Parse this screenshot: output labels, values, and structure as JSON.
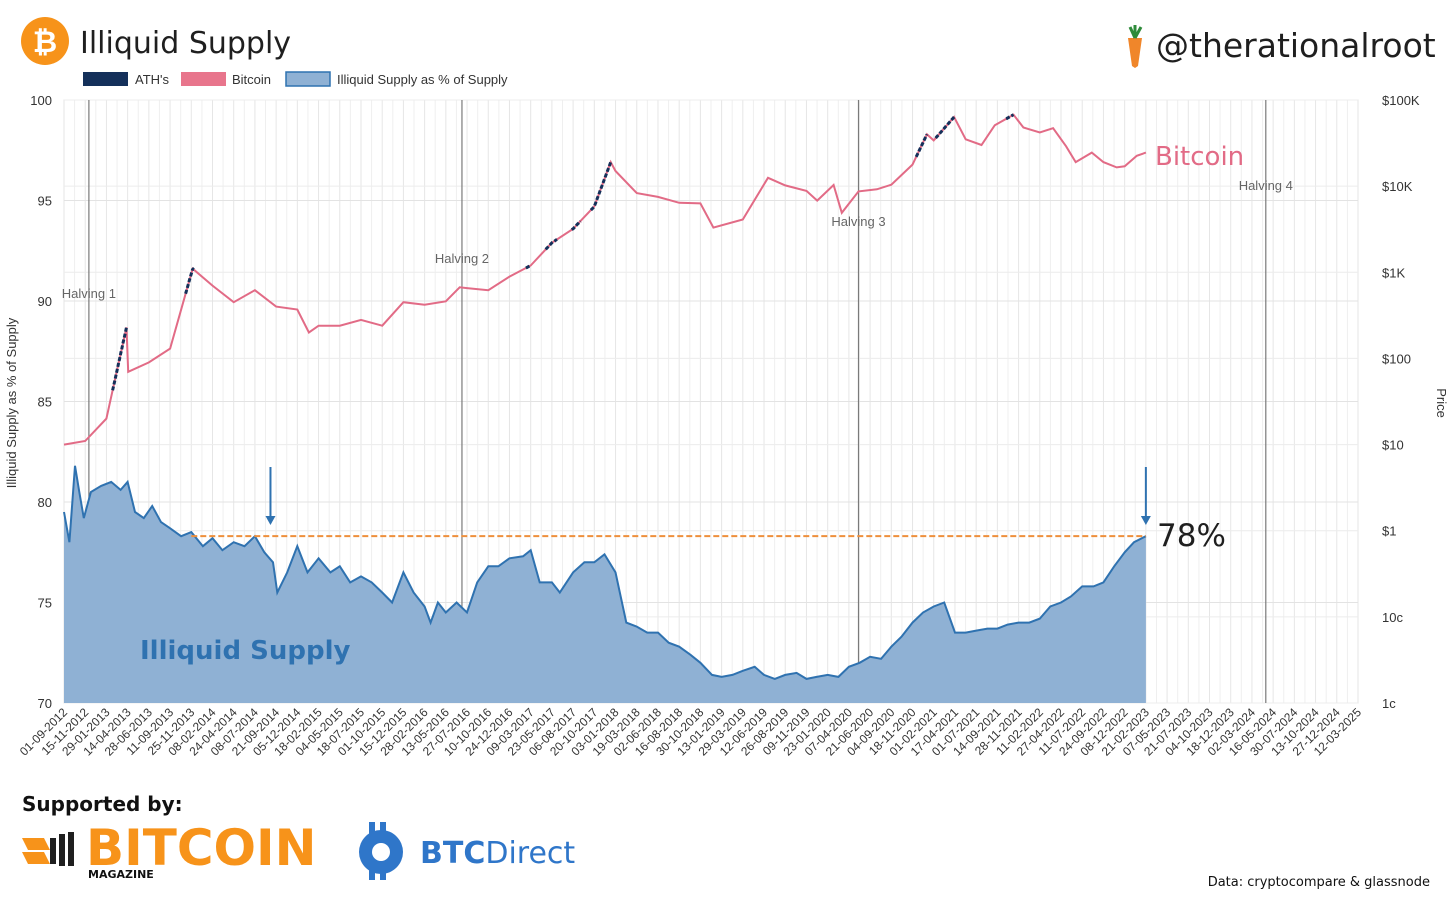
{
  "header": {
    "title": "Illiquid Supply",
    "handle": "@therationalroot",
    "bitcoin_glyph": "₿"
  },
  "legend": [
    {
      "label": "ATH's",
      "color": "#14305a"
    },
    {
      "label": "Bitcoin",
      "color": "#e8758c"
    },
    {
      "label": "Illiquid Supply as % of Supply",
      "color": "#8fb1d4"
    }
  ],
  "labels": {
    "bitcoin": "Bitcoin",
    "illiquid": "Illiquid Supply",
    "current_pct": "78%"
  },
  "footer": {
    "supported_by": "Supported by:",
    "bitcoin_magazine": "BITCOIN",
    "bitcoin_magazine_sub": "MAGAZINE",
    "btc_direct_a": "BTC",
    "btc_direct_b": "Direct",
    "source": "Data: cryptocompare & glassnode"
  },
  "colors": {
    "bitcoin_line": "#e26b86",
    "ath": "#14305a",
    "illiquid_fill": "#8fb1d4",
    "illiquid_line": "#2f72b0",
    "reference": "#ee8f3b",
    "orange": "#f7931a"
  },
  "chart_data": {
    "type": "area",
    "ylabel": "Illiquid Supply as % of Supply",
    "y2label": "Price",
    "ylim": [
      70,
      100
    ],
    "yticks": [
      "100",
      "95",
      "90",
      "85",
      "80",
      "75",
      "70"
    ],
    "y2ticks": [
      "$100K",
      "$10K",
      "$1K",
      "$100",
      "$10",
      "$1",
      "10c",
      "1c"
    ],
    "y2_log_range": [
      0.01,
      100000
    ],
    "x_tick_labels": [
      "01-09-2012",
      "15-11-2012",
      "29-01-2013",
      "14-04-2013",
      "28-06-2013",
      "11-09-2013",
      "25-11-2013",
      "08-02-2014",
      "24-04-2014",
      "08-07-2014",
      "21-09-2014",
      "05-12-2014",
      "18-02-2015",
      "04-05-2015",
      "18-07-2015",
      "01-10-2015",
      "15-12-2015",
      "28-02-2016",
      "13-05-2016",
      "27-07-2016",
      "10-10-2016",
      "24-12-2016",
      "09-03-2017",
      "23-05-2017",
      "06-08-2017",
      "20-10-2017",
      "03-01-2018",
      "19-03-2018",
      "02-06-2018",
      "16-08-2018",
      "30-10-2018",
      "13-01-2019",
      "29-03-2019",
      "12-06-2019",
      "26-08-2019",
      "09-11-2019",
      "23-01-2020",
      "07-04-2020",
      "21-06-2020",
      "04-09-2020",
      "18-11-2020",
      "01-02-2021",
      "17-04-2021",
      "01-07-2021",
      "14-09-2021",
      "28-11-2021",
      "11-02-2022",
      "27-04-2022",
      "11-07-2022",
      "24-09-2022",
      "08-12-2022",
      "21-02-2023",
      "07-05-2023",
      "21-07-2023",
      "04-10-2023",
      "18-12-2023",
      "02-03-2024",
      "16-05-2024",
      "30-07-2024",
      "13-10-2024",
      "27-12-2024",
      "12-03-2025"
    ],
    "halvings": [
      {
        "label": "Halving 1",
        "date": "2012-11-28"
      },
      {
        "label": "Halving 2",
        "date": "2016-07-09"
      },
      {
        "label": "Halving 3",
        "date": "2020-05-11"
      },
      {
        "label": "Halving 4",
        "date": "2024-04-20"
      }
    ],
    "reference_line": {
      "value": 78.3,
      "label": "78%"
    },
    "series": [
      {
        "name": "Illiquid Supply as % of Supply",
        "axis": "left",
        "points": [
          [
            "2012-09-01",
            79.5
          ],
          [
            "2012-09-20",
            78.0
          ],
          [
            "2012-10-10",
            81.8
          ],
          [
            "2012-10-25",
            80.5
          ],
          [
            "2012-11-10",
            79.2
          ],
          [
            "2012-12-05",
            80.5
          ],
          [
            "2013-01-10",
            80.8
          ],
          [
            "2013-02-15",
            81.0
          ],
          [
            "2013-03-20",
            80.6
          ],
          [
            "2013-04-14",
            81.0
          ],
          [
            "2013-05-10",
            79.5
          ],
          [
            "2013-06-10",
            79.2
          ],
          [
            "2013-07-10",
            79.8
          ],
          [
            "2013-08-10",
            79.0
          ],
          [
            "2013-09-10",
            78.7
          ],
          [
            "2013-10-20",
            78.3
          ],
          [
            "2013-11-25",
            78.5
          ],
          [
            "2014-01-05",
            77.8
          ],
          [
            "2014-02-08",
            78.2
          ],
          [
            "2014-03-15",
            77.6
          ],
          [
            "2014-04-24",
            78.0
          ],
          [
            "2014-06-01",
            77.8
          ],
          [
            "2014-07-08",
            78.3
          ],
          [
            "2014-08-10",
            77.5
          ],
          [
            "2014-09-10",
            77.0
          ],
          [
            "2014-09-25",
            75.5
          ],
          [
            "2014-10-30",
            76.5
          ],
          [
            "2014-12-05",
            77.8
          ],
          [
            "2015-01-10",
            76.5
          ],
          [
            "2015-02-18",
            77.2
          ],
          [
            "2015-04-01",
            76.5
          ],
          [
            "2015-05-04",
            76.8
          ],
          [
            "2015-06-10",
            76.0
          ],
          [
            "2015-07-18",
            76.3
          ],
          [
            "2015-08-25",
            76.0
          ],
          [
            "2015-10-01",
            75.5
          ],
          [
            "2015-11-05",
            75.0
          ],
          [
            "2015-12-15",
            76.5
          ],
          [
            "2016-01-20",
            75.5
          ],
          [
            "2016-02-28",
            74.8
          ],
          [
            "2016-03-20",
            74.0
          ],
          [
            "2016-04-15",
            75.0
          ],
          [
            "2016-05-13",
            74.5
          ],
          [
            "2016-06-20",
            75.0
          ],
          [
            "2016-07-27",
            74.5
          ],
          [
            "2016-09-01",
            76.0
          ],
          [
            "2016-10-10",
            76.8
          ],
          [
            "2016-11-15",
            76.8
          ],
          [
            "2016-12-24",
            77.2
          ],
          [
            "2017-02-10",
            77.3
          ],
          [
            "2017-03-09",
            77.6
          ],
          [
            "2017-04-10",
            76.0
          ],
          [
            "2017-05-23",
            76.0
          ],
          [
            "2017-06-20",
            75.5
          ],
          [
            "2017-08-06",
            76.5
          ],
          [
            "2017-09-15",
            77.0
          ],
          [
            "2017-10-20",
            77.0
          ],
          [
            "2017-11-25",
            77.4
          ],
          [
            "2018-01-03",
            76.5
          ],
          [
            "2018-02-10",
            74.0
          ],
          [
            "2018-03-19",
            73.8
          ],
          [
            "2018-04-25",
            73.5
          ],
          [
            "2018-06-02",
            73.5
          ],
          [
            "2018-07-10",
            73.0
          ],
          [
            "2018-08-16",
            72.8
          ],
          [
            "2018-09-25",
            72.4
          ],
          [
            "2018-10-30",
            72.0
          ],
          [
            "2018-12-10",
            71.4
          ],
          [
            "2019-01-13",
            71.3
          ],
          [
            "2019-02-20",
            71.4
          ],
          [
            "2019-03-29",
            71.6
          ],
          [
            "2019-05-10",
            71.8
          ],
          [
            "2019-06-12",
            71.4
          ],
          [
            "2019-07-20",
            71.2
          ],
          [
            "2019-08-26",
            71.4
          ],
          [
            "2019-10-05",
            71.5
          ],
          [
            "2019-11-09",
            71.2
          ],
          [
            "2019-12-15",
            71.3
          ],
          [
            "2020-01-23",
            71.4
          ],
          [
            "2020-03-01",
            71.3
          ],
          [
            "2020-04-07",
            71.8
          ],
          [
            "2020-05-15",
            72.0
          ],
          [
            "2020-06-21",
            72.3
          ],
          [
            "2020-07-30",
            72.2
          ],
          [
            "2020-09-04",
            72.8
          ],
          [
            "2020-10-10",
            73.3
          ],
          [
            "2020-11-18",
            74.0
          ],
          [
            "2020-12-25",
            74.5
          ],
          [
            "2021-02-01",
            74.8
          ],
          [
            "2021-03-10",
            75.0
          ],
          [
            "2021-04-17",
            73.5
          ],
          [
            "2021-05-25",
            73.5
          ],
          [
            "2021-07-01",
            73.6
          ],
          [
            "2021-08-10",
            73.7
          ],
          [
            "2021-09-14",
            73.7
          ],
          [
            "2021-10-20",
            73.9
          ],
          [
            "2021-11-28",
            74.0
          ],
          [
            "2022-01-05",
            74.0
          ],
          [
            "2022-02-11",
            74.2
          ],
          [
            "2022-03-20",
            74.8
          ],
          [
            "2022-04-27",
            75.0
          ],
          [
            "2022-06-01",
            75.3
          ],
          [
            "2022-07-11",
            75.8
          ],
          [
            "2022-08-20",
            75.8
          ],
          [
            "2022-09-24",
            76.0
          ],
          [
            "2022-11-01",
            76.8
          ],
          [
            "2022-12-08",
            77.5
          ],
          [
            "2023-01-10",
            78.0
          ],
          [
            "2023-02-21",
            78.3
          ]
        ]
      },
      {
        "name": "Bitcoin",
        "axis": "right",
        "points": [
          [
            "2012-09-01",
            10
          ],
          [
            "2012-11-15",
            11
          ],
          [
            "2013-01-29",
            20
          ],
          [
            "2013-04-10",
            230
          ],
          [
            "2013-04-16",
            70
          ],
          [
            "2013-06-28",
            90
          ],
          [
            "2013-09-11",
            130
          ],
          [
            "2013-11-30",
            1100
          ],
          [
            "2014-02-08",
            700
          ],
          [
            "2014-04-24",
            450
          ],
          [
            "2014-07-08",
            620
          ],
          [
            "2014-09-21",
            400
          ],
          [
            "2014-12-05",
            370
          ],
          [
            "2015-01-15",
            200
          ],
          [
            "2015-02-18",
            240
          ],
          [
            "2015-05-04",
            240
          ],
          [
            "2015-07-18",
            280
          ],
          [
            "2015-10-01",
            240
          ],
          [
            "2015-12-15",
            450
          ],
          [
            "2016-02-28",
            420
          ],
          [
            "2016-05-13",
            460
          ],
          [
            "2016-07-01",
            670
          ],
          [
            "2016-07-27",
            655
          ],
          [
            "2016-10-10",
            620
          ],
          [
            "2016-12-24",
            890
          ],
          [
            "2017-03-09",
            1200
          ],
          [
            "2017-05-23",
            2200
          ],
          [
            "2017-08-06",
            3200
          ],
          [
            "2017-10-20",
            5800
          ],
          [
            "2017-12-17",
            19000
          ],
          [
            "2018-01-03",
            15000
          ],
          [
            "2018-03-19",
            8300
          ],
          [
            "2018-06-02",
            7500
          ],
          [
            "2018-08-16",
            6400
          ],
          [
            "2018-10-30",
            6300
          ],
          [
            "2018-12-15",
            3300
          ],
          [
            "2019-03-29",
            4100
          ],
          [
            "2019-06-26",
            12500
          ],
          [
            "2019-08-26",
            10200
          ],
          [
            "2019-11-09",
            8800
          ],
          [
            "2019-12-17",
            6800
          ],
          [
            "2020-02-13",
            10300
          ],
          [
            "2020-03-13",
            4900
          ],
          [
            "2020-05-11",
            8700
          ],
          [
            "2020-07-15",
            9200
          ],
          [
            "2020-09-04",
            10400
          ],
          [
            "2020-11-18",
            17800
          ],
          [
            "2021-01-08",
            40000
          ],
          [
            "2021-02-01",
            34000
          ],
          [
            "2021-04-14",
            63500
          ],
          [
            "2021-05-25",
            35000
          ],
          [
            "2021-07-20",
            30000
          ],
          [
            "2021-09-05",
            51000
          ],
          [
            "2021-11-10",
            67500
          ],
          [
            "2021-12-15",
            48000
          ],
          [
            "2022-02-11",
            42000
          ],
          [
            "2022-03-30",
            47000
          ],
          [
            "2022-05-15",
            29000
          ],
          [
            "2022-06-18",
            19000
          ],
          [
            "2022-08-14",
            24500
          ],
          [
            "2022-09-24",
            19000
          ],
          [
            "2022-11-10",
            16500
          ],
          [
            "2022-12-08",
            17000
          ],
          [
            "2023-01-20",
            22500
          ],
          [
            "2023-02-21",
            24500
          ]
        ]
      },
      {
        "name": "ATH's",
        "axis": "right",
        "segments": [
          {
            "start": "2013-02-20",
            "end": "2013-04-10"
          },
          {
            "start": "2013-11-05",
            "end": "2013-12-04"
          },
          {
            "start": "2017-02-20",
            "end": "2017-03-09"
          },
          {
            "start": "2017-05-01",
            "end": "2017-06-10"
          },
          {
            "start": "2017-08-01",
            "end": "2017-09-01"
          },
          {
            "start": "2017-10-08",
            "end": "2017-12-17"
          },
          {
            "start": "2020-12-01",
            "end": "2021-01-08"
          },
          {
            "start": "2021-02-08",
            "end": "2021-04-14"
          },
          {
            "start": "2021-10-15",
            "end": "2021-11-10"
          }
        ]
      }
    ]
  }
}
